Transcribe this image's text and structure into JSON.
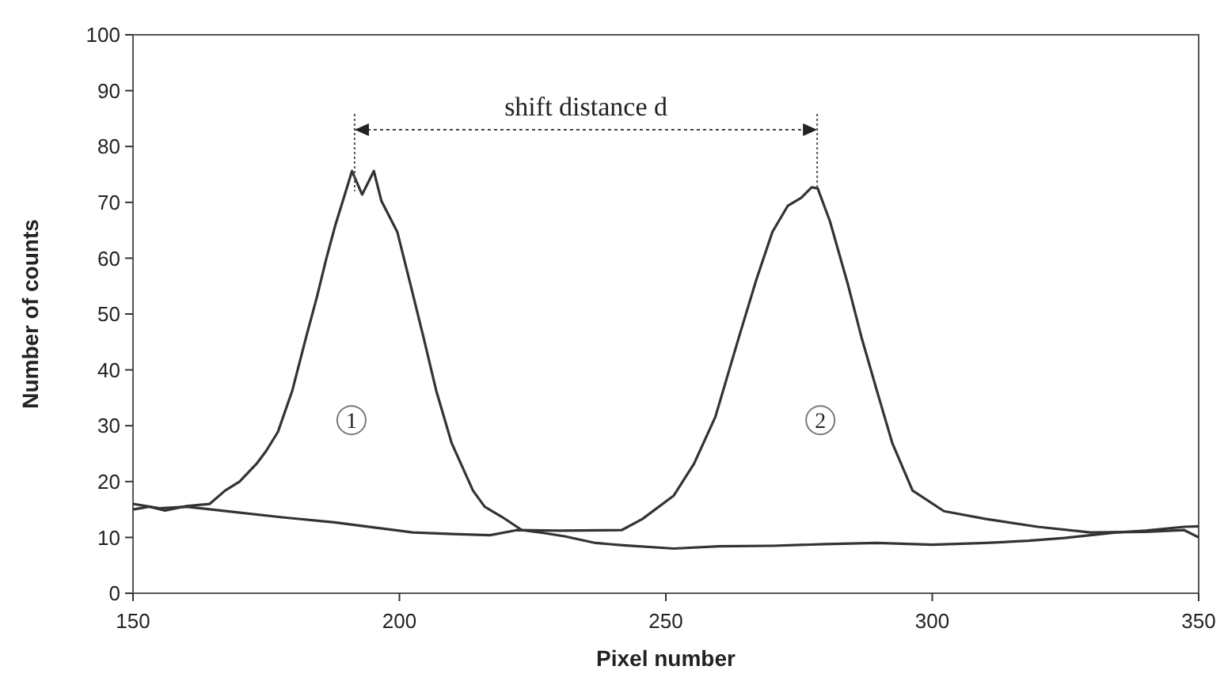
{
  "chart_data": {
    "type": "line",
    "xlabel": "Pixel number",
    "ylabel": "Number of counts",
    "xlim": [
      150,
      350
    ],
    "ylim": [
      0,
      100
    ],
    "xticks": [
      150,
      200,
      250,
      300,
      350
    ],
    "yticks": [
      0,
      10,
      20,
      30,
      40,
      50,
      60,
      70,
      80,
      90,
      100
    ],
    "grid": false,
    "marker": "none",
    "line_style": "solid",
    "series": [
      {
        "color": "#333333",
        "x": [
          150,
          153,
          156,
          160,
          164.4,
          167.3,
          170,
          173.2,
          175,
          177.2,
          179.9,
          182.5,
          184.5,
          186.3,
          188,
          189.3,
          191.1,
          193,
          195.2,
          196.6,
          199.6,
          202.1,
          204.5,
          206.9,
          209.8,
          213.8,
          216,
          219.2,
          223,
          227,
          231,
          236.8,
          242,
          251.5,
          260,
          270.1,
          280,
          289.6,
          300,
          310.1,
          318,
          324.8,
          334.5,
          340,
          347.3,
          350
        ],
        "values": [
          15,
          15.5,
          14.8,
          15.6,
          16,
          18.4,
          20,
          23.2,
          25.5,
          28.9,
          36.3,
          45.9,
          53,
          60,
          66,
          70,
          75.6,
          71.4,
          75.6,
          70.3,
          64.7,
          55.2,
          45.9,
          36.3,
          26.9,
          18.4,
          15.5,
          13.7,
          11.3,
          10.8,
          10.2,
          9,
          8.6,
          8,
          8.4,
          8.5,
          8.8,
          9,
          8.7,
          9,
          9.4,
          9.9,
          10.9,
          11.2,
          11.9,
          12
        ]
      },
      {
        "color": "#333333",
        "x": [
          150,
          155,
          160,
          168.4,
          178,
          187.8,
          195,
          202.5,
          210,
          217,
          222,
          230,
          241.7,
          245.6,
          251.5,
          255.3,
          259.3,
          263.7,
          267,
          270,
          272.9,
          275.4,
          277.4,
          278.5,
          280.8,
          284.2,
          286.7,
          289.6,
          292.5,
          296.3,
          302.2,
          310.1,
          319.8,
          329.7,
          340,
          347.3,
          350
        ],
        "values": [
          16,
          15.2,
          15.5,
          14.6,
          13.6,
          12.7,
          11.8,
          10.9,
          10.6,
          10.4,
          11.3,
          11.2,
          11.3,
          13.3,
          17.5,
          23.2,
          31.6,
          45.8,
          56.2,
          64.7,
          69.4,
          70.8,
          72.7,
          72.5,
          66.6,
          55.2,
          45.9,
          36.3,
          26.9,
          18.4,
          14.7,
          13.3,
          11.9,
          10.9,
          11,
          11.3,
          10
        ]
      }
    ],
    "annotations": [
      "shift distance d",
      {
        "text": "1",
        "x": 191,
        "y": 31
      },
      {
        "text": "2",
        "x": 279,
        "y": 31
      }
    ]
  }
}
